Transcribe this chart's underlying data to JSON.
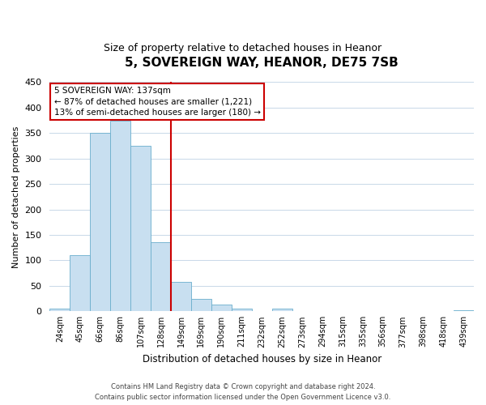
{
  "title": "5, SOVEREIGN WAY, HEANOR, DE75 7SB",
  "subtitle": "Size of property relative to detached houses in Heanor",
  "xlabel": "Distribution of detached houses by size in Heanor",
  "ylabel": "Number of detached properties",
  "bar_labels": [
    "24sqm",
    "45sqm",
    "66sqm",
    "86sqm",
    "107sqm",
    "128sqm",
    "149sqm",
    "169sqm",
    "190sqm",
    "211sqm",
    "232sqm",
    "252sqm",
    "273sqm",
    "294sqm",
    "315sqm",
    "335sqm",
    "356sqm",
    "377sqm",
    "398sqm",
    "418sqm",
    "439sqm"
  ],
  "bar_values": [
    5,
    110,
    350,
    375,
    325,
    135,
    57,
    25,
    14,
    6,
    0,
    5,
    0,
    0,
    0,
    0,
    0,
    0,
    0,
    0,
    2
  ],
  "bar_color": "#c8dff0",
  "bar_edge_color": "#6aaecc",
  "vline_color": "#cc0000",
  "annotation_title": "5 SOVEREIGN WAY: 137sqm",
  "annotation_line1": "← 87% of detached houses are smaller (1,221)",
  "annotation_line2": "13% of semi-detached houses are larger (180) →",
  "annotation_box_color": "#ffffff",
  "annotation_box_edge_color": "#cc0000",
  "ylim": [
    0,
    450
  ],
  "yticks": [
    0,
    50,
    100,
    150,
    200,
    250,
    300,
    350,
    400,
    450
  ],
  "footer_line1": "Contains HM Land Registry data © Crown copyright and database right 2024.",
  "footer_line2": "Contains public sector information licensed under the Open Government Licence v3.0.",
  "background_color": "#ffffff",
  "grid_color": "#c8d8e8",
  "title_fontsize": 11,
  "subtitle_fontsize": 9
}
